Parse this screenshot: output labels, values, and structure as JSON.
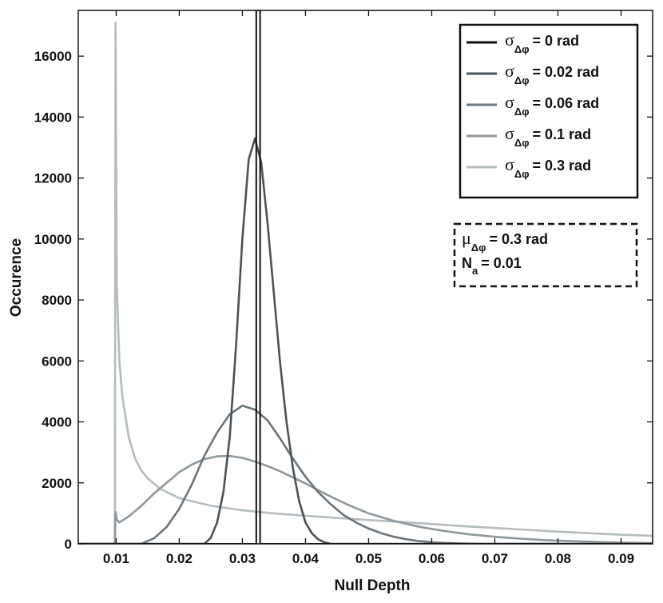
{
  "chart_data": {
    "type": "line",
    "title": "",
    "xlabel": "Null Depth",
    "ylabel": "Occurence",
    "xlim": [
      0.004,
      0.095
    ],
    "ylim": [
      0,
      17500
    ],
    "x_ticks": [
      0.01,
      0.02,
      0.03,
      0.04,
      0.05,
      0.06,
      0.07,
      0.08,
      0.09
    ],
    "x_tick_labels": [
      "0.01",
      "0.02",
      "0.03",
      "0.04",
      "0.05",
      "0.06",
      "0.07",
      "0.08",
      "0.09"
    ],
    "y_ticks": [
      0,
      2000,
      4000,
      6000,
      8000,
      10000,
      12000,
      14000,
      16000
    ],
    "y_tick_labels": [
      "0",
      "2000",
      "4000",
      "6000",
      "8000",
      "10000",
      "12000",
      "14000",
      "16000"
    ],
    "grid": false,
    "legend_position": "top-right",
    "series": [
      {
        "name": "σΔφ = 0 rad",
        "label_symbol": "σ",
        "label_sub": "Δφ",
        "label_rest": "= 0 rad",
        "color": "#111111",
        "x": [
          0.004,
          0.0322,
          0.0322,
          0.0328,
          0.0328,
          0.095
        ],
        "y": [
          0,
          0,
          17500,
          17500,
          0,
          0
        ]
      },
      {
        "name": "σΔφ = 0.02 rad",
        "label_symbol": "σ",
        "label_sub": "Δφ",
        "label_rest": "= 0.02 rad",
        "color": "#4a5258",
        "x": [
          0.004,
          0.024,
          0.025,
          0.026,
          0.027,
          0.028,
          0.029,
          0.03,
          0.031,
          0.032,
          0.033,
          0.034,
          0.035,
          0.036,
          0.037,
          0.038,
          0.039,
          0.04,
          0.041,
          0.042,
          0.043,
          0.044,
          0.095
        ],
        "y": [
          0,
          0,
          200,
          700,
          1700,
          3500,
          6500,
          10000,
          12600,
          13300,
          12500,
          10500,
          8200,
          5900,
          4000,
          2500,
          1400,
          700,
          350,
          150,
          50,
          0,
          0
        ]
      },
      {
        "name": "σΔφ = 0.06 rad",
        "label_symbol": "σ",
        "label_sub": "Δφ",
        "label_rest": "= 0.06 rad",
        "color": "#6a757c",
        "x": [
          0.004,
          0.014,
          0.016,
          0.018,
          0.02,
          0.022,
          0.024,
          0.026,
          0.028,
          0.03,
          0.032,
          0.034,
          0.036,
          0.038,
          0.04,
          0.042,
          0.044,
          0.046,
          0.048,
          0.05,
          0.052,
          0.054,
          0.056,
          0.058,
          0.06,
          0.062,
          0.064,
          0.066,
          0.068,
          0.095
        ],
        "y": [
          0,
          0,
          180,
          550,
          1150,
          1950,
          2900,
          3650,
          4250,
          4530,
          4400,
          4050,
          3450,
          2800,
          2200,
          1700,
          1300,
          950,
          700,
          500,
          350,
          230,
          150,
          90,
          50,
          30,
          15,
          5,
          0,
          0
        ]
      },
      {
        "name": "σΔφ = 0.1 rad",
        "label_symbol": "σ",
        "label_sub": "Δφ",
        "label_rest": "= 0.1 rad",
        "color": "#8e979c",
        "x": [
          0.004,
          0.0098,
          0.0099,
          0.0101,
          0.0105,
          0.012,
          0.014,
          0.016,
          0.018,
          0.02,
          0.022,
          0.024,
          0.026,
          0.028,
          0.03,
          0.032,
          0.034,
          0.036,
          0.038,
          0.04,
          0.042,
          0.044,
          0.046,
          0.048,
          0.05,
          0.054,
          0.058,
          0.062,
          0.066,
          0.07,
          0.074,
          0.078,
          0.082,
          0.086,
          0.09,
          0.095
        ],
        "y": [
          0,
          0,
          1050,
          800,
          700,
          900,
          1250,
          1650,
          2000,
          2350,
          2600,
          2780,
          2870,
          2880,
          2820,
          2700,
          2550,
          2380,
          2180,
          1980,
          1760,
          1550,
          1350,
          1170,
          1000,
          750,
          560,
          420,
          310,
          230,
          170,
          120,
          90,
          60,
          40,
          25
        ]
      },
      {
        "name": "σΔφ = 0.3 rad",
        "label_symbol": "σ",
        "label_sub": "Δφ",
        "label_rest": "= 0.3 rad",
        "color": "#b4bcc0",
        "x": [
          0.004,
          0.0098,
          0.0099,
          0.0101,
          0.0105,
          0.011,
          0.012,
          0.013,
          0.014,
          0.015,
          0.017,
          0.02,
          0.025,
          0.03,
          0.035,
          0.04,
          0.045,
          0.05,
          0.055,
          0.06,
          0.065,
          0.07,
          0.075,
          0.08,
          0.085,
          0.09,
          0.095
        ],
        "y": [
          0,
          0,
          17100,
          8500,
          6000,
          4800,
          3500,
          2800,
          2400,
          2150,
          1800,
          1500,
          1250,
          1100,
          1000,
          920,
          850,
          780,
          720,
          650,
          580,
          520,
          460,
          400,
          350,
          300,
          260
        ]
      }
    ],
    "annotation": {
      "line1_symbol": "μ",
      "line1_sub": "Δφ",
      "line1_rest": "= 0.3 rad",
      "line2_symbol": "N",
      "line2_sub": "a",
      "line2_rest": "= 0.01"
    }
  }
}
